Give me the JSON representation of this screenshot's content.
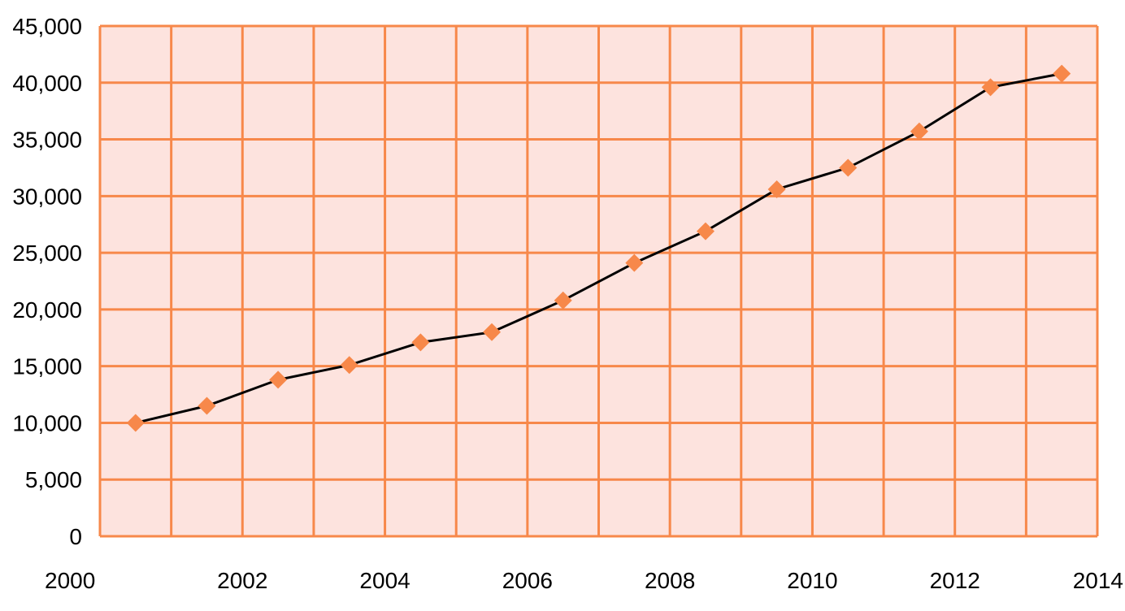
{
  "chart_data": {
    "type": "line",
    "title": "",
    "xlabel": "",
    "ylabel": "",
    "xlim": [
      2000,
      2014
    ],
    "ylim": [
      0,
      45000
    ],
    "grid": true,
    "x_ticks": [
      "2000",
      "2002",
      "2004",
      "2006",
      "2008",
      "2010",
      "2012",
      "2014"
    ],
    "y_ticks": [
      "0",
      "5,000",
      "10,000",
      "15,000",
      "20,000",
      "25,000",
      "30,000",
      "35,000",
      "40,000",
      "45,000"
    ],
    "series": [
      {
        "x": [
          2000.5,
          2001.5,
          2002.5,
          2003.5,
          2004.5,
          2005.5,
          2006.5,
          2007.5,
          2008.5,
          2009.5,
          2010.5,
          2011.5,
          2012.5,
          2013.5
        ],
        "values": [
          10000,
          11500,
          13800,
          15100,
          17100,
          18000,
          20800,
          24100,
          26900,
          30600,
          32500,
          35700,
          39600,
          40800
        ]
      }
    ],
    "colors": {
      "plot_background": "#fde3de",
      "grid": "#f7884a",
      "marker": "#f7884a",
      "line": "#000000"
    }
  }
}
